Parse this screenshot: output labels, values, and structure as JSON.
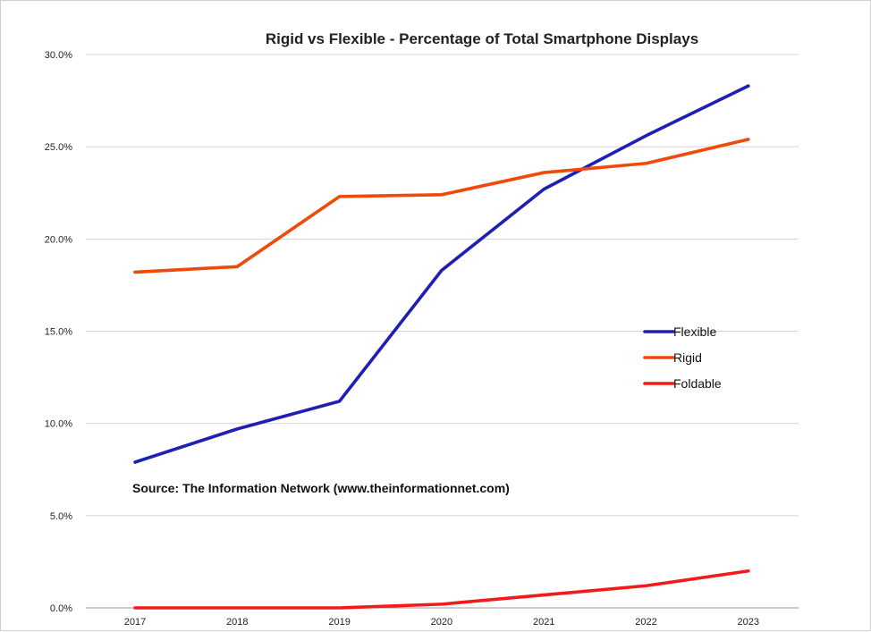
{
  "chart_data": {
    "type": "line",
    "title": "Rigid vs Flexible - Percentage of Total Smartphone Displays",
    "categories": [
      "2017",
      "2018",
      "2019",
      "2020",
      "2021",
      "2022",
      "2023"
    ],
    "ylim": [
      0,
      30
    ],
    "yticks": [
      "0.0%",
      "5.0%",
      "10.0%",
      "15.0%",
      "20.0%",
      "25.0%",
      "30.0%"
    ],
    "grid": true,
    "legend_position": "right",
    "series": [
      {
        "name": "Flexible",
        "color": "#1f1fb4",
        "values": [
          7.9,
          9.7,
          11.2,
          18.3,
          22.7,
          25.6,
          28.3
        ]
      },
      {
        "name": "Rigid",
        "color": "#f04a0a",
        "values": [
          18.2,
          18.5,
          22.3,
          22.4,
          23.6,
          24.1,
          25.4
        ]
      },
      {
        "name": "Foldable",
        "color": "#f21a1a",
        "values": [
          0.0,
          0.0,
          0.0,
          0.2,
          0.7,
          1.2,
          2.0
        ]
      }
    ],
    "annotation": "Source: The Information Network (www.theinformationnet.com)"
  }
}
